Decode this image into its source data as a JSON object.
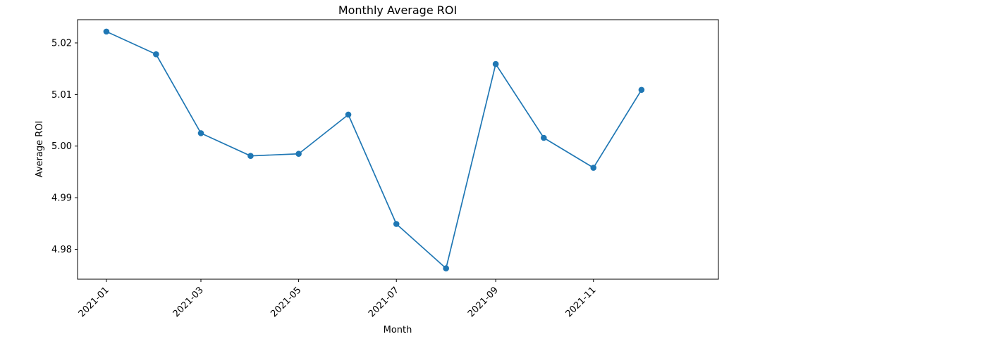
{
  "chart_data": {
    "type": "line",
    "title": "Monthly Average ROI",
    "xlabel": "Month",
    "ylabel": "Average ROI",
    "x": [
      "2021-01",
      "2021-02",
      "2021-03",
      "2021-04",
      "2021-05",
      "2021-06",
      "2021-07",
      "2021-08",
      "2021-09",
      "2021-10",
      "2021-11",
      "2021-12"
    ],
    "series": [
      {
        "values": [
          5.0222,
          5.0178,
          5.0025,
          4.9981,
          4.9985,
          5.0061,
          4.9849,
          4.9763,
          5.0159,
          5.0016,
          4.9958,
          5.0109
        ],
        "color": "#1f77b4",
        "marker": "circle"
      }
    ],
    "xticks": [
      "2021-01",
      "2021-03",
      "2021-05",
      "2021-07",
      "2021-09",
      "2021-11"
    ],
    "yticks": [
      4.98,
      4.99,
      5.0,
      5.01,
      5.02
    ],
    "ytick_labels": [
      "4.98",
      "4.99",
      "5.00",
      "5.01",
      "5.02"
    ],
    "ylim": [
      4.9742,
      5.0245
    ],
    "xlim": [
      "2020-12-14",
      "2022-01-18"
    ],
    "grid": false,
    "legend": "none"
  }
}
